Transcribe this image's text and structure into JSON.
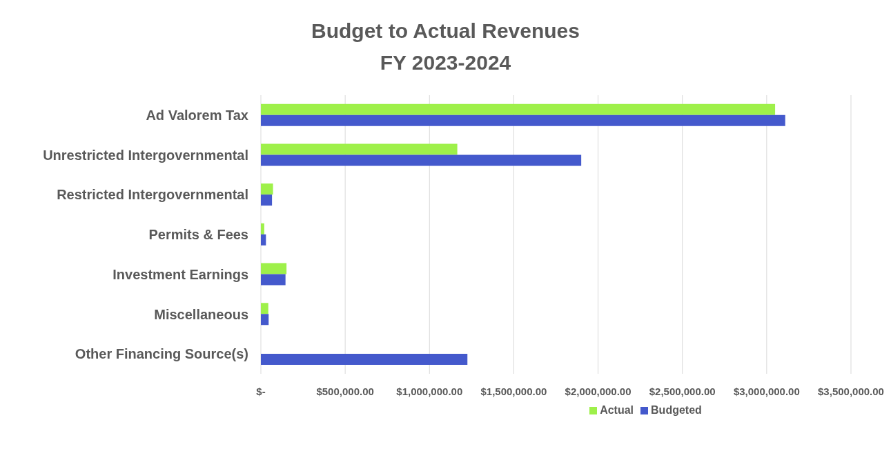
{
  "chart_data": {
    "type": "bar",
    "orientation": "horizontal",
    "title": "Budget to Actual Revenues",
    "subtitle": "FY 2023-2024",
    "categories": [
      "Ad Valorem Tax",
      "Unrestricted Intergovernmental",
      "Restricted Intergovernmental",
      "Permits & Fees",
      "Investment Earnings",
      "Miscellaneous",
      "Other Financing Source(s)"
    ],
    "series": [
      {
        "name": "Actual",
        "color": "#9ef04a",
        "values": [
          3050000,
          1165000,
          72000,
          20000,
          152000,
          44000,
          0
        ]
      },
      {
        "name": "Budgeted",
        "color": "#4459cc",
        "values": [
          3110000,
          1900000,
          66000,
          30000,
          146000,
          46000,
          1225000
        ]
      }
    ],
    "xlim": [
      0,
      3500000
    ],
    "xticks": [
      {
        "value": 0,
        "label": "$-"
      },
      {
        "value": 500000,
        "label": "$500,000.00"
      },
      {
        "value": 1000000,
        "label": "$1,000,000.00"
      },
      {
        "value": 1500000,
        "label": "$1,500,000.00"
      },
      {
        "value": 2000000,
        "label": "$2,000,000.00"
      },
      {
        "value": 2500000,
        "label": "$2,500,000.00"
      },
      {
        "value": 3000000,
        "label": "$3,000,000.00"
      },
      {
        "value": 3500000,
        "label": "$3,500,000.00"
      }
    ],
    "grid": "x",
    "legend": "bottom"
  }
}
